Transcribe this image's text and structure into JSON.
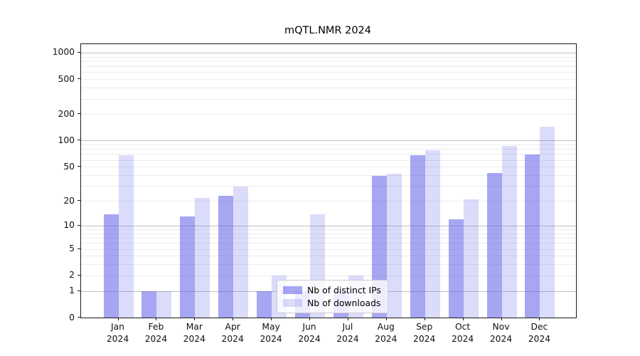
{
  "title": "mQTL.NMR 2024",
  "legend": {
    "items": [
      {
        "label": "Nb of distinct IPs"
      },
      {
        "label": "Nb of downloads"
      }
    ]
  },
  "colors": {
    "bar_ips": "rgba(92,92,233,0.55)",
    "bar_downloads": "rgba(92,92,233,0.22)",
    "grid_major": "#bfbfbf",
    "grid_minor": "#ececec",
    "axis": "#1a1a1a"
  },
  "chart_data": {
    "type": "bar",
    "title": "mQTL.NMR 2024",
    "categories": [
      "Jan",
      "Feb",
      "Mar",
      "Apr",
      "May",
      "Jun",
      "Jul",
      "Aug",
      "Sep",
      "Oct",
      "Nov",
      "Dec"
    ],
    "year": "2024",
    "series": [
      {
        "name": "Nb of distinct IPs",
        "values": [
          14,
          1,
          13,
          23,
          1,
          1,
          1,
          40,
          68,
          12,
          43,
          70
        ]
      },
      {
        "name": "Nb of downloads",
        "values": [
          68,
          1,
          22,
          30,
          2,
          14,
          2,
          42,
          78,
          21,
          88,
          144
        ]
      }
    ],
    "yscale": "log1p",
    "yticks": [
      0,
      1,
      2,
      5,
      10,
      20,
      50,
      100,
      200,
      500,
      1000
    ],
    "ylim": [
      0,
      1258
    ],
    "xlabel": "",
    "ylabel": "",
    "grid": "horizontal, log decades major + 2-9 minors",
    "legend_position": "lower-center-inside"
  }
}
